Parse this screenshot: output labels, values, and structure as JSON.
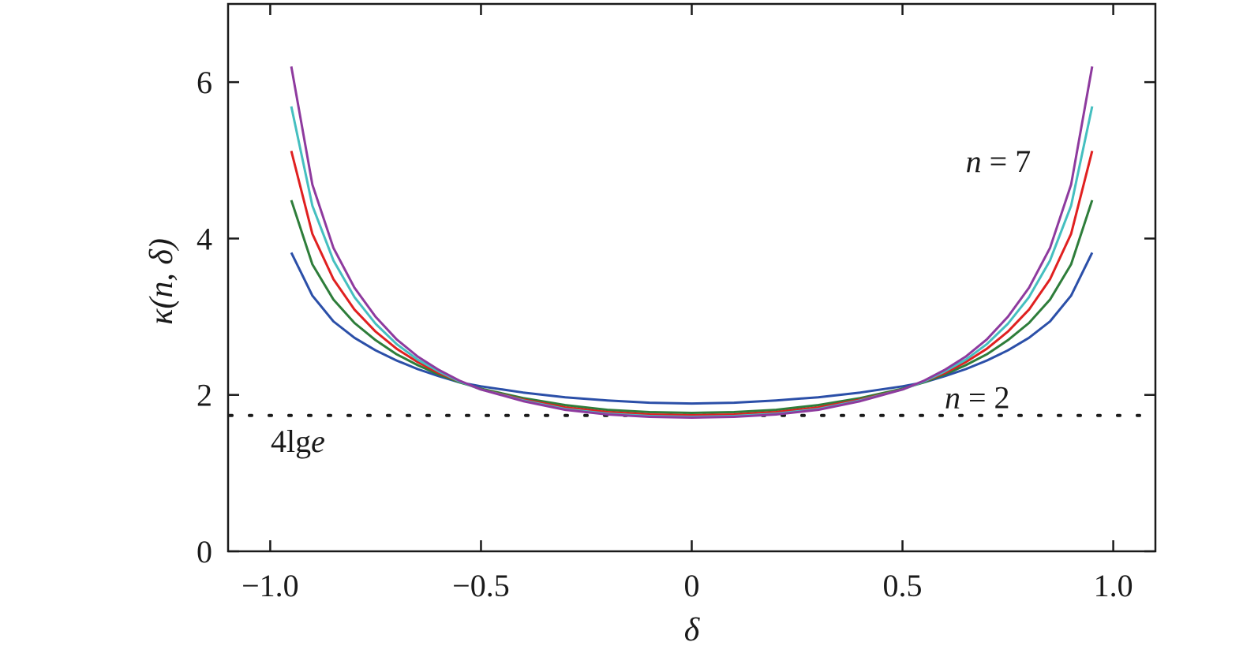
{
  "chart_data": {
    "type": "line",
    "title": "",
    "xlabel": "δ",
    "ylabel": "κ(n, δ)",
    "xlim": [
      -1.1,
      1.1
    ],
    "ylim": [
      0,
      7
    ],
    "xticks": [
      -1.0,
      -0.5,
      0,
      0.5,
      1.0
    ],
    "xtick_labels": [
      "−1.0",
      "−0.5",
      "0",
      "0.5",
      "1.0"
    ],
    "yticks": [
      0,
      2,
      4,
      6
    ],
    "ytick_labels": [
      "0",
      "2",
      "4",
      "6"
    ],
    "grid": false,
    "x": [
      -0.95,
      -0.9,
      -0.85,
      -0.8,
      -0.75,
      -0.7,
      -0.65,
      -0.6,
      -0.55,
      -0.5,
      -0.4,
      -0.3,
      -0.2,
      -0.1,
      0,
      0.1,
      0.2,
      0.3,
      0.4,
      0.5,
      0.55,
      0.6,
      0.65,
      0.7,
      0.75,
      0.8,
      0.85,
      0.9,
      0.95
    ],
    "series": [
      {
        "color": "#2b4fa8",
        "values": [
          3.82,
          3.27,
          2.94,
          2.73,
          2.57,
          2.44,
          2.33,
          2.24,
          2.16,
          2.11,
          2.03,
          1.97,
          1.93,
          1.9,
          1.89,
          1.9,
          1.93,
          1.97,
          2.03,
          2.11,
          2.16,
          2.24,
          2.33,
          2.44,
          2.57,
          2.73,
          2.94,
          3.27,
          3.82
        ]
      },
      {
        "color": "#2e7d3a",
        "values": [
          4.49,
          3.67,
          3.22,
          2.92,
          2.7,
          2.52,
          2.38,
          2.26,
          2.16,
          2.08,
          1.96,
          1.87,
          1.81,
          1.78,
          1.77,
          1.78,
          1.81,
          1.87,
          1.96,
          2.08,
          2.16,
          2.26,
          2.38,
          2.52,
          2.7,
          2.92,
          3.22,
          3.67,
          4.49
        ]
      },
      {
        "color": "#e02020",
        "values": [
          5.12,
          4.06,
          3.48,
          3.09,
          2.81,
          2.59,
          2.42,
          2.28,
          2.17,
          2.07,
          1.94,
          1.84,
          1.78,
          1.75,
          1.74,
          1.75,
          1.78,
          1.84,
          1.94,
          2.07,
          2.17,
          2.28,
          2.42,
          2.59,
          2.81,
          3.09,
          3.48,
          4.06,
          5.12
        ]
      },
      {
        "color": "#45bfc0",
        "values": [
          5.69,
          4.42,
          3.72,
          3.25,
          2.91,
          2.65,
          2.45,
          2.3,
          2.17,
          2.07,
          1.93,
          1.82,
          1.76,
          1.73,
          1.72,
          1.73,
          1.76,
          1.82,
          1.93,
          2.07,
          2.17,
          2.3,
          2.45,
          2.65,
          2.91,
          3.25,
          3.72,
          4.42,
          5.69
        ]
      },
      {
        "color": "#8e3a9e",
        "values": [
          6.2,
          4.69,
          3.88,
          3.37,
          3.0,
          2.71,
          2.49,
          2.32,
          2.18,
          2.07,
          1.92,
          1.81,
          1.75,
          1.72,
          1.71,
          1.72,
          1.75,
          1.81,
          1.92,
          2.07,
          2.18,
          2.32,
          2.49,
          2.71,
          3.0,
          3.37,
          3.88,
          4.69,
          6.2
        ]
      }
    ],
    "reference_line": {
      "value": 1.7372,
      "style": "dotted",
      "label_prefix": "4lg",
      "label_var": "e"
    },
    "annotations": [
      {
        "var": "n",
        "text": " = 7",
        "x": 0.65,
        "y": 4.85
      },
      {
        "var": "n",
        "text": " = 2",
        "x": 0.6,
        "y": 1.83
      }
    ]
  }
}
